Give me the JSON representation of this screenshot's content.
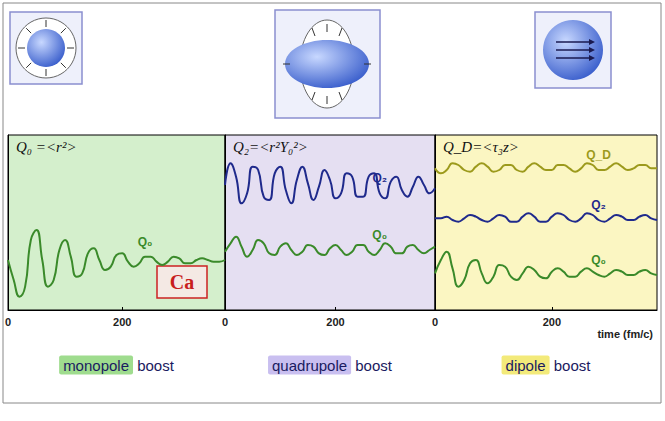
{
  "chart_data": [
    {
      "type": "line",
      "title": "Q₀ =<r²>",
      "x": [
        0,
        10,
        20,
        30,
        40,
        50,
        60,
        70,
        80,
        90,
        100,
        110,
        120,
        130,
        140,
        150,
        160,
        170,
        180,
        190,
        200,
        210,
        220,
        230,
        240,
        250,
        260,
        270,
        280,
        290,
        300,
        310,
        320,
        330,
        340,
        350,
        360,
        370,
        380
      ],
      "series": [
        {
          "name": "Q₀",
          "color": "#3a8a2a",
          "values": [
            30,
            18,
            8,
            14,
            42,
            48,
            30,
            14,
            18,
            36,
            42,
            32,
            20,
            22,
            34,
            37,
            30,
            24,
            26,
            33,
            34,
            29,
            26,
            28,
            32,
            32,
            29,
            27,
            29,
            32,
            31,
            28,
            28,
            30,
            31,
            30,
            29,
            29,
            30
          ]
        }
      ],
      "xlim": [
        0,
        380
      ],
      "xticks": [
        0,
        200
      ],
      "ylim": [
        0,
        105
      ],
      "grid": false,
      "tick_labels": "x",
      "annotations": [
        {
          "text": "Ca"
        }
      ],
      "caption": [
        "monopole",
        "boost"
      ]
    },
    {
      "type": "line",
      "title": "Q₂=<r²Y₀²>",
      "x": [
        0,
        10,
        20,
        30,
        40,
        50,
        60,
        70,
        80,
        90,
        100,
        110,
        120,
        130,
        140,
        150,
        160,
        170,
        180,
        190,
        200,
        210,
        220,
        230,
        240,
        250,
        260,
        270,
        280,
        290,
        300,
        310,
        320,
        330,
        340,
        350,
        360,
        370,
        380
      ],
      "series": [
        {
          "name": "Q₂",
          "color": "#1f2a8c",
          "values": [
            75,
            88,
            80,
            64,
            70,
            86,
            84,
            68,
            66,
            82,
            86,
            72,
            64,
            78,
            86,
            76,
            66,
            74,
            84,
            78,
            67,
            70,
            82,
            80,
            68,
            68,
            80,
            82,
            70,
            67,
            77,
            80,
            72,
            68,
            74,
            80,
            75,
            70,
            73
          ]
        },
        {
          "name": "Q₀",
          "color": "#3a8a2a",
          "values": [
            35,
            40,
            44,
            38,
            32,
            36,
            42,
            40,
            34,
            33,
            38,
            40,
            36,
            33,
            35,
            39,
            38,
            34,
            33,
            37,
            39,
            36,
            33,
            35,
            39,
            39,
            35,
            33,
            36,
            40,
            38,
            34,
            34,
            38,
            39,
            36,
            34,
            36,
            38
          ]
        }
      ],
      "xlim": [
        0,
        380
      ],
      "xticks": [
        0,
        200
      ],
      "ylim": [
        0,
        105
      ],
      "grid": false,
      "tick_labels": "x",
      "caption": [
        "quadrupole",
        "boost"
      ]
    },
    {
      "type": "line",
      "title": "Q_D=<τ₃z>",
      "xlabel": "time (fm/c)",
      "x": [
        0,
        10,
        20,
        30,
        40,
        50,
        60,
        70,
        80,
        90,
        100,
        110,
        120,
        130,
        140,
        150,
        160,
        170,
        180,
        190,
        200,
        210,
        220,
        230,
        240,
        250,
        260,
        270,
        280,
        290,
        300,
        310,
        320,
        330,
        340,
        350,
        360,
        370,
        380
      ],
      "series": [
        {
          "name": "Q_D",
          "color": "#9c9a1c",
          "values": [
            85,
            82,
            84,
            88,
            87,
            84,
            83,
            86,
            88,
            86,
            83,
            84,
            87,
            87,
            84,
            83,
            86,
            88,
            86,
            84,
            84,
            87,
            87,
            85,
            83,
            85,
            88,
            87,
            84,
            84,
            86,
            88,
            86,
            84,
            85,
            87,
            87,
            85,
            85
          ]
        },
        {
          "name": "Q₂",
          "color": "#1f2a8c",
          "values": [
            55,
            55,
            56,
            54,
            53,
            55,
            57,
            56,
            54,
            53,
            55,
            57,
            56,
            53,
            53,
            56,
            58,
            56,
            53,
            53,
            56,
            58,
            57,
            54,
            53,
            55,
            58,
            57,
            54,
            53,
            55,
            57,
            56,
            54,
            54,
            56,
            57,
            55,
            54
          ]
        },
        {
          "name": "Q₀",
          "color": "#3a8a2a",
          "values": [
            22,
            30,
            35,
            25,
            14,
            18,
            28,
            30,
            22,
            16,
            20,
            27,
            26,
            20,
            18,
            22,
            26,
            24,
            20,
            19,
            23,
            25,
            23,
            20,
            20,
            23,
            25,
            23,
            21,
            20,
            22,
            24,
            23,
            21,
            21,
            23,
            24,
            22,
            21
          ]
        }
      ],
      "xlim": [
        0,
        380
      ],
      "xticks": [
        0,
        200
      ],
      "ylim": [
        0,
        105
      ],
      "grid": false,
      "tick_labels": "x",
      "caption": [
        "dipole",
        "boost"
      ]
    }
  ]
}
